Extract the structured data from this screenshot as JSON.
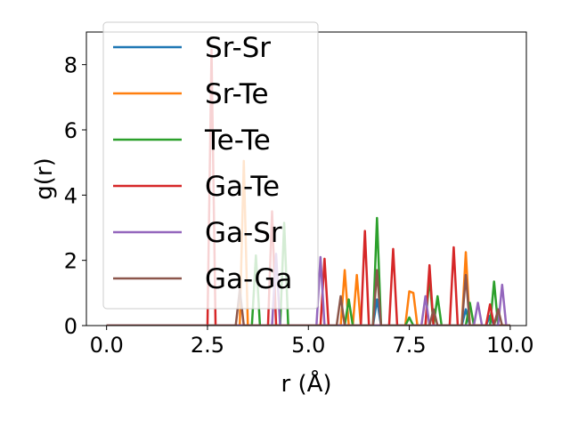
{
  "chart_data": {
    "type": "line",
    "xlabel": "r (Å)",
    "ylabel": "g(r)",
    "xlim": [
      -0.5,
      10.4
    ],
    "ylim": [
      0,
      9.0
    ],
    "xticks": [
      0.0,
      2.5,
      5.0,
      7.5,
      10.0
    ],
    "xtick_labels": [
      "0.0",
      "2.5",
      "5.0",
      "7.5",
      "10.0"
    ],
    "yticks": [
      0,
      2,
      4,
      6,
      8
    ],
    "ytick_labels": [
      "0",
      "2",
      "4",
      "6",
      "8"
    ],
    "grid": false,
    "legend_position": "upper-left",
    "bin_width": 0.1,
    "series": [
      {
        "name": "Sr-Sr",
        "color": "#1f77b4",
        "peaks": [
          [
            6.7,
            0.8
          ],
          [
            8.9,
            0.5
          ],
          [
            9.5,
            0.3
          ]
        ]
      },
      {
        "name": "Sr-Te",
        "color": "#ff7f0e",
        "peaks": [
          [
            3.4,
            5.05
          ],
          [
            5.9,
            1.7
          ],
          [
            6.2,
            1.55
          ],
          [
            7.5,
            1.05
          ],
          [
            7.6,
            1.0
          ],
          [
            8.9,
            2.25
          ]
        ]
      },
      {
        "name": "Te-Te",
        "color": "#2ca02c",
        "peaks": [
          [
            3.7,
            2.15
          ],
          [
            4.4,
            3.15
          ],
          [
            6.0,
            0.8
          ],
          [
            6.7,
            3.3
          ],
          [
            7.5,
            0.25
          ],
          [
            8.0,
            1.5
          ],
          [
            8.2,
            0.9
          ],
          [
            9.0,
            0.7
          ],
          [
            9.6,
            1.35
          ]
        ]
      },
      {
        "name": "Ga-Te",
        "color": "#d62728",
        "peaks": [
          [
            2.6,
            8.45
          ],
          [
            4.1,
            3.5
          ],
          [
            5.4,
            2.05
          ],
          [
            6.4,
            2.9
          ],
          [
            7.1,
            2.35
          ],
          [
            8.0,
            1.85
          ],
          [
            8.6,
            2.4
          ],
          [
            9.5,
            0.65
          ]
        ]
      },
      {
        "name": "Ga-Sr",
        "color": "#9467bd",
        "peaks": [
          [
            4.2,
            2.2
          ],
          [
            5.3,
            2.1
          ],
          [
            7.9,
            0.9
          ],
          [
            9.2,
            0.7
          ],
          [
            9.8,
            1.25
          ]
        ]
      },
      {
        "name": "Ga-Ga",
        "color": "#8c564b",
        "peaks": [
          [
            3.3,
            1.1
          ],
          [
            5.8,
            0.9
          ],
          [
            6.7,
            1.7
          ],
          [
            8.1,
            0.5
          ],
          [
            8.9,
            1.55
          ],
          [
            9.7,
            0.5
          ]
        ]
      }
    ]
  }
}
